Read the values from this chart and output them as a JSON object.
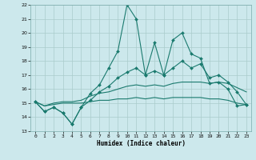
{
  "xlabel": "Humidex (Indice chaleur)",
  "background_color": "#cce8ec",
  "grid_color": "#aacccc",
  "line_color": "#1a7a6e",
  "xlim": [
    -0.5,
    23.5
  ],
  "ylim": [
    13,
    22
  ],
  "xticks": [
    0,
    1,
    2,
    3,
    4,
    5,
    6,
    7,
    8,
    9,
    10,
    11,
    12,
    13,
    14,
    15,
    16,
    17,
    18,
    19,
    20,
    21,
    22,
    23
  ],
  "yticks": [
    13,
    14,
    15,
    16,
    17,
    18,
    19,
    20,
    21,
    22
  ],
  "series1_x": [
    0,
    1,
    2,
    3,
    4,
    5,
    6,
    7,
    8,
    9,
    10,
    11,
    12,
    13,
    14,
    15,
    16,
    17,
    18,
    19,
    20,
    21,
    22,
    23
  ],
  "series1_y": [
    15.1,
    14.4,
    14.7,
    14.3,
    13.5,
    14.7,
    15.7,
    16.3,
    17.5,
    18.7,
    22.0,
    21.0,
    17.0,
    19.3,
    17.0,
    19.5,
    20.0,
    18.5,
    18.2,
    16.4,
    16.5,
    16.0,
    14.8,
    14.9
  ],
  "series2_x": [
    0,
    1,
    2,
    3,
    4,
    5,
    6,
    7,
    8,
    9,
    10,
    11,
    12,
    13,
    14,
    15,
    16,
    17,
    18,
    19,
    20,
    21,
    22,
    23
  ],
  "series2_y": [
    15.1,
    14.4,
    14.7,
    14.3,
    13.5,
    14.7,
    15.2,
    15.8,
    16.2,
    16.8,
    17.2,
    17.5,
    17.0,
    17.3,
    17.0,
    17.5,
    18.0,
    17.5,
    17.8,
    16.8,
    17.0,
    16.5,
    15.8,
    14.9
  ],
  "series3_x": [
    0,
    1,
    2,
    3,
    4,
    5,
    6,
    7,
    8,
    9,
    10,
    11,
    12,
    13,
    14,
    15,
    16,
    17,
    18,
    19,
    20,
    21,
    22,
    23
  ],
  "series3_y": [
    15.1,
    14.8,
    15.0,
    15.1,
    15.1,
    15.2,
    15.5,
    15.7,
    15.8,
    16.0,
    16.2,
    16.3,
    16.2,
    16.3,
    16.2,
    16.4,
    16.5,
    16.5,
    16.5,
    16.4,
    16.5,
    16.4,
    16.1,
    15.8
  ],
  "series4_x": [
    0,
    1,
    2,
    3,
    4,
    5,
    6,
    7,
    8,
    9,
    10,
    11,
    12,
    13,
    14,
    15,
    16,
    17,
    18,
    19,
    20,
    21,
    22,
    23
  ],
  "series4_y": [
    15.1,
    14.8,
    14.9,
    15.0,
    15.0,
    15.0,
    15.1,
    15.2,
    15.2,
    15.3,
    15.3,
    15.4,
    15.3,
    15.4,
    15.3,
    15.4,
    15.4,
    15.4,
    15.4,
    15.3,
    15.3,
    15.2,
    15.0,
    14.9
  ]
}
